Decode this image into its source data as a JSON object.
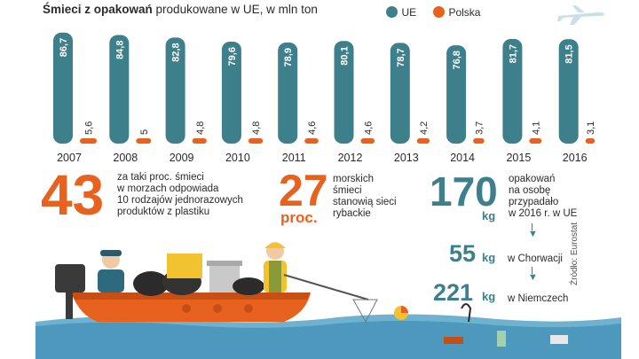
{
  "header": {
    "title_bold": "Śmieci z opakowań",
    "title_rest": " produkowane w UE, w mln ton",
    "legend": [
      {
        "label": "UE",
        "color": "#3d7f8b"
      },
      {
        "label": "Polska",
        "color": "#e8621f"
      }
    ]
  },
  "chart_data": {
    "type": "bar",
    "title": "Śmieci z opakowań produkowane w UE, w mln ton",
    "categories": [
      "2007",
      "2008",
      "2009",
      "2010",
      "2011",
      "2012",
      "2013",
      "2014",
      "2015",
      "2016"
    ],
    "series": [
      {
        "name": "UE",
        "color": "#3d7f8b",
        "values": [
          86.7,
          84.8,
          82.8,
          79.6,
          78.9,
          80.1,
          78.7,
          76.8,
          81.7,
          81.5
        ],
        "labels": [
          "86,7",
          "84,8",
          "82,8",
          "79,6",
          "78,9",
          "80,1",
          "78,7",
          "76,8",
          "81,7",
          "81,5"
        ]
      },
      {
        "name": "Polska",
        "color": "#e8621f",
        "values": [
          5.6,
          5,
          4.8,
          4.8,
          4.6,
          4.6,
          4.2,
          3.7,
          4.1,
          3.1
        ],
        "labels": [
          "5,6",
          "5",
          "4,8",
          "4,8",
          "4,6",
          "4,6",
          "4,2",
          "3,7",
          "4,1",
          "3,1"
        ]
      }
    ],
    "ylim": [
      0,
      90
    ],
    "xlabel": "",
    "ylabel": ""
  },
  "stats": {
    "s43": {
      "number": "43",
      "text": [
        "za taki proc. śmieci",
        "w morzach odpowiada",
        "10 rodzajów jednorazowych",
        "produktów z plastiku"
      ]
    },
    "s27": {
      "number": "27",
      "unit": "proc.",
      "text": [
        "morskich",
        "śmieci",
        "stanowią sieci",
        "rybackie"
      ]
    },
    "s170": {
      "number": "170",
      "unit": "kg",
      "text": [
        "opakowań",
        "na osobę",
        "przypadało",
        "w 2016 r. w UE"
      ]
    },
    "s55": {
      "number": "55",
      "unit": "kg",
      "text": "w Chorwacji"
    },
    "s221": {
      "number": "221",
      "unit": "kg",
      "text": "w Niemczech"
    }
  },
  "source": "Źródło: Eurostat"
}
